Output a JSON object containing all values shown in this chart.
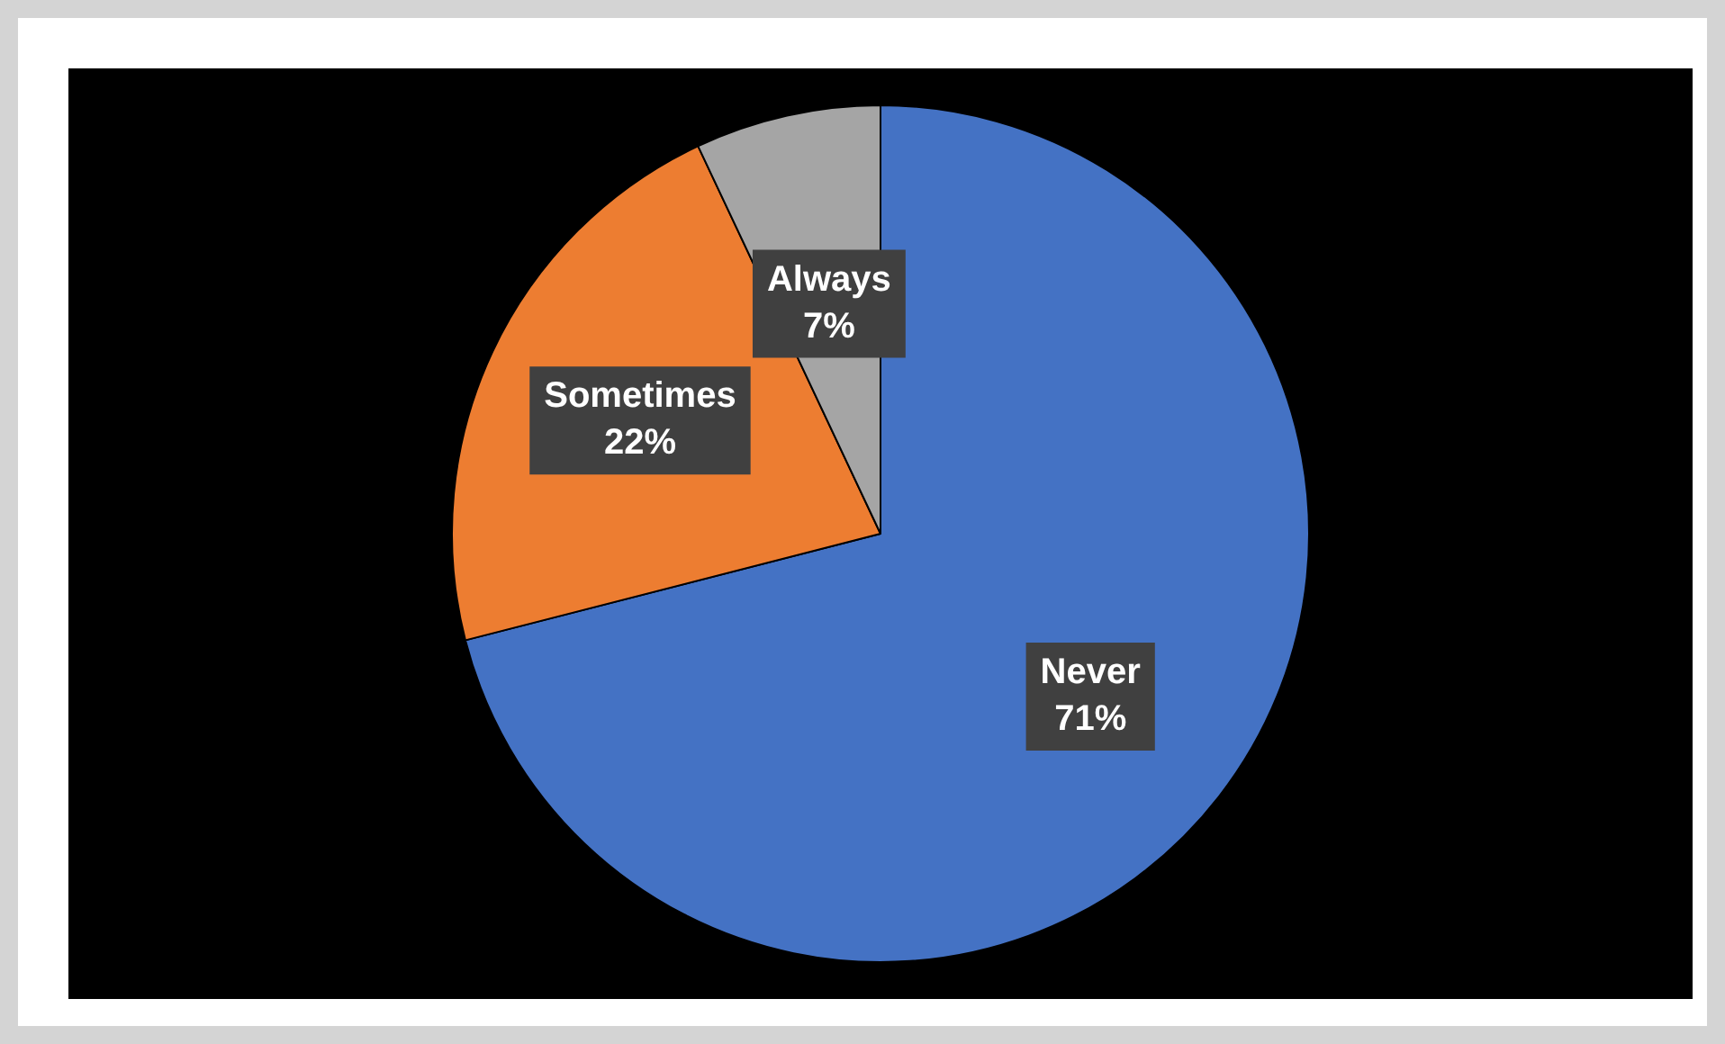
{
  "chart_data": {
    "type": "pie",
    "categories": [
      "Never",
      "Sometimes",
      "Always"
    ],
    "values": [
      71,
      22,
      7
    ],
    "colors": [
      "#4472c4",
      "#ed7d31",
      "#a5a5a5"
    ],
    "value_labels": [
      "71%",
      "22%",
      "7%"
    ],
    "legend": false
  }
}
